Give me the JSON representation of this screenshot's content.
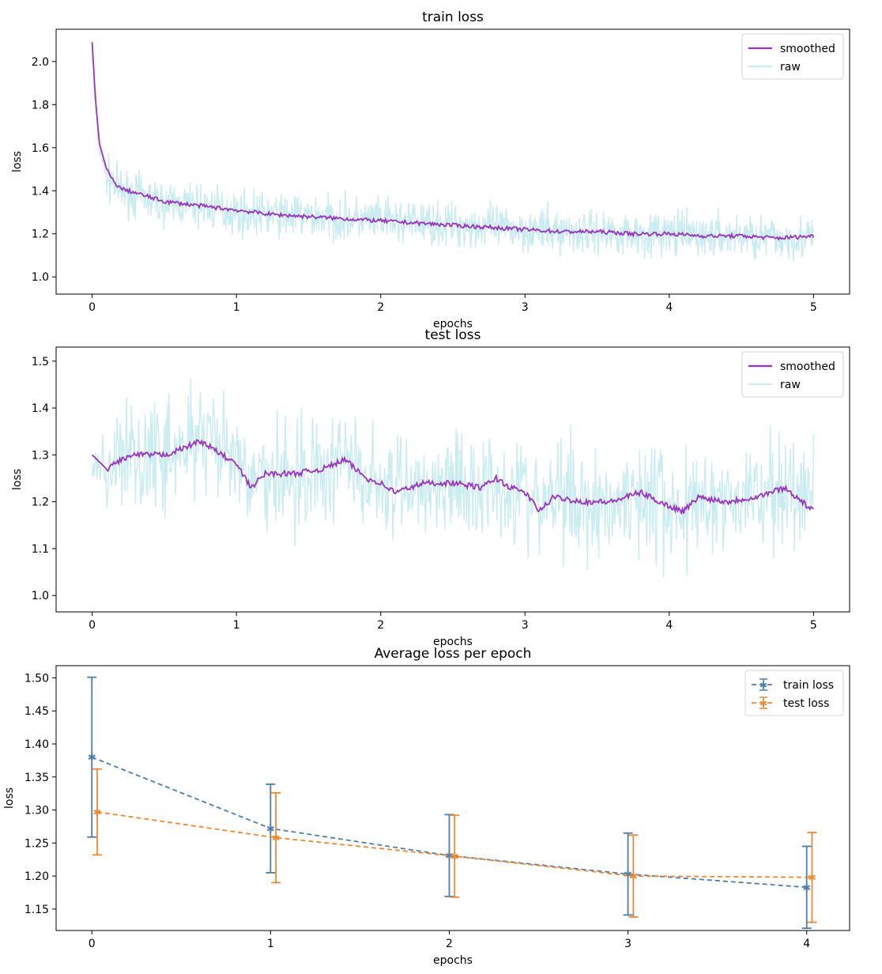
{
  "chart_data": [
    {
      "type": "line",
      "title": "train loss",
      "xlabel": "epochs",
      "ylabel": "loss",
      "xlim": [
        -0.25,
        5.25
      ],
      "ylim": [
        0.92,
        2.15
      ],
      "xticks": [
        0,
        1,
        2,
        3,
        4,
        5
      ],
      "yticks": [
        1.0,
        1.2,
        1.4,
        1.6,
        1.8,
        2.0
      ],
      "ytick_decimals": 1,
      "legend": "top-right",
      "colors": {
        "smoothed": "#9a32c8",
        "raw": "#c8ecf0"
      },
      "series": [
        {
          "name": "smoothed",
          "x": [
            0,
            0.02,
            0.05,
            0.1,
            0.15,
            0.2,
            0.3,
            0.5,
            0.75,
            1.0,
            1.25,
            1.5,
            1.75,
            2.0,
            2.25,
            2.5,
            2.75,
            3.0,
            3.25,
            3.5,
            3.75,
            4.0,
            4.25,
            4.5,
            4.75,
            5.0
          ],
          "values": [
            2.09,
            1.85,
            1.62,
            1.5,
            1.44,
            1.41,
            1.39,
            1.35,
            1.33,
            1.31,
            1.29,
            1.28,
            1.27,
            1.26,
            1.25,
            1.24,
            1.23,
            1.22,
            1.21,
            1.21,
            1.2,
            1.2,
            1.19,
            1.19,
            1.18,
            1.19
          ]
        },
        {
          "name": "raw",
          "x": [
            0,
            0.02,
            0.05,
            0.1,
            0.15,
            0.2,
            0.3,
            0.5,
            0.75,
            1.0,
            1.25,
            1.5,
            1.75,
            2.0,
            2.25,
            2.5,
            2.75,
            3.0,
            3.25,
            3.5,
            3.75,
            4.0,
            4.25,
            4.5,
            4.75,
            5.0
          ],
          "values": [
            2.05,
            1.8,
            1.6,
            1.47,
            1.43,
            1.4,
            1.38,
            1.34,
            1.33,
            1.3,
            1.29,
            1.28,
            1.27,
            1.26,
            1.25,
            1.24,
            1.23,
            1.22,
            1.21,
            1.21,
            1.2,
            1.2,
            1.19,
            1.19,
            1.18,
            1.18
          ],
          "spread": 0.1
        }
      ]
    },
    {
      "type": "line",
      "title": "test loss",
      "xlabel": "epochs",
      "ylabel": "loss",
      "xlim": [
        -0.25,
        5.25
      ],
      "ylim": [
        0.965,
        1.53
      ],
      "xticks": [
        0,
        1,
        2,
        3,
        4,
        5
      ],
      "yticks": [
        1.0,
        1.1,
        1.2,
        1.3,
        1.4,
        1.5
      ],
      "ytick_decimals": 1,
      "legend": "top-right",
      "colors": {
        "smoothed": "#9a32c8",
        "raw": "#c8ecf0"
      },
      "series": [
        {
          "name": "smoothed",
          "x": [
            0,
            0.1,
            0.2,
            0.3,
            0.5,
            0.6,
            0.75,
            0.9,
            1.0,
            1.1,
            1.2,
            1.4,
            1.6,
            1.75,
            1.9,
            2.0,
            2.1,
            2.3,
            2.5,
            2.7,
            2.8,
            2.9,
            3.0,
            3.1,
            3.2,
            3.4,
            3.6,
            3.8,
            4.0,
            4.1,
            4.2,
            4.4,
            4.6,
            4.8,
            5.0
          ],
          "values": [
            1.3,
            1.27,
            1.29,
            1.3,
            1.3,
            1.31,
            1.33,
            1.3,
            1.28,
            1.23,
            1.26,
            1.26,
            1.27,
            1.29,
            1.25,
            1.24,
            1.22,
            1.24,
            1.24,
            1.23,
            1.25,
            1.23,
            1.22,
            1.18,
            1.21,
            1.2,
            1.2,
            1.22,
            1.19,
            1.18,
            1.21,
            1.2,
            1.21,
            1.23,
            1.18
          ]
        },
        {
          "name": "raw",
          "x": [
            0,
            0.1,
            0.2,
            0.3,
            0.5,
            0.6,
            0.75,
            0.9,
            1.0,
            1.1,
            1.2,
            1.4,
            1.6,
            1.75,
            1.9,
            2.0,
            2.1,
            2.3,
            2.5,
            2.7,
            2.8,
            2.9,
            3.0,
            3.1,
            3.2,
            3.4,
            3.6,
            3.8,
            4.0,
            4.1,
            4.2,
            4.4,
            4.6,
            4.8,
            5.0
          ],
          "values": [
            1.3,
            1.27,
            1.29,
            1.3,
            1.3,
            1.31,
            1.33,
            1.3,
            1.28,
            1.23,
            1.26,
            1.26,
            1.27,
            1.29,
            1.25,
            1.24,
            1.22,
            1.24,
            1.24,
            1.23,
            1.25,
            1.23,
            1.22,
            1.18,
            1.21,
            1.2,
            1.2,
            1.22,
            1.19,
            1.18,
            1.21,
            1.2,
            1.21,
            1.23,
            1.18
          ],
          "spread": 0.12
        }
      ]
    },
    {
      "type": "line",
      "title": "Average loss per epoch",
      "xlabel": "epochs",
      "ylabel": "loss",
      "xlim": [
        -0.2,
        4.24
      ],
      "ylim": [
        1.1175,
        1.5185
      ],
      "xticks": [
        0,
        1,
        2,
        3,
        4
      ],
      "yticks": [
        1.15,
        1.2,
        1.25,
        1.3,
        1.35,
        1.4,
        1.45,
        1.5
      ],
      "ytick_decimals": 2,
      "legend": "top-right",
      "colors": {
        "train loss": "#4a7eb0",
        "test loss": "#f0892e"
      },
      "series": [
        {
          "name": "train loss",
          "x": [
            0,
            1,
            2,
            3,
            4
          ],
          "values": [
            1.38,
            1.272,
            1.231,
            1.203,
            1.183
          ],
          "err": [
            0.121,
            0.067,
            0.062,
            0.062,
            0.062
          ],
          "x_offset": 0
        },
        {
          "name": "test loss",
          "x": [
            0,
            1,
            2,
            3,
            4
          ],
          "values": [
            1.297,
            1.258,
            1.23,
            1.2,
            1.198
          ],
          "err": [
            0.065,
            0.068,
            0.062,
            0.062,
            0.068
          ],
          "x_offset": 0.03
        }
      ]
    }
  ]
}
